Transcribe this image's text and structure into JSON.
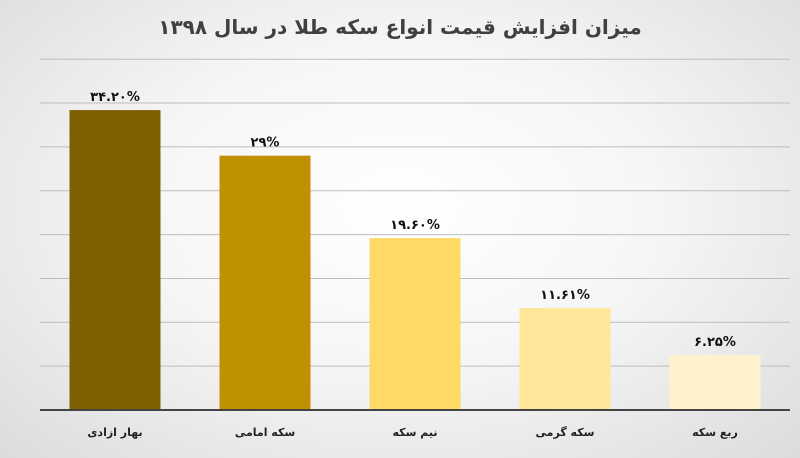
{
  "chart_data": {
    "type": "bar",
    "title": "میزان افزایش قیمت انواع سکه طلا در سال ۱۳۹۸",
    "xlabel": "",
    "ylabel": "",
    "categories": [
      "بهار ازادی",
      "سکه امامی",
      "نیم سکه",
      "سکه گرمی",
      "ربع سکه"
    ],
    "values": [
      34.2,
      29,
      19.6,
      11.61,
      6.25
    ],
    "data_labels": [
      "۳۴.۲۰%",
      "۲۹%",
      "۱۹.۶۰%",
      "۱۱.۶۱%",
      "۶.۲۵%"
    ],
    "colors": [
      "#7f6000",
      "#bf9000",
      "#ffd966",
      "#ffe699",
      "#fff2cc"
    ],
    "ylim": [
      0,
      40
    ],
    "grid": true,
    "legend": "none"
  }
}
